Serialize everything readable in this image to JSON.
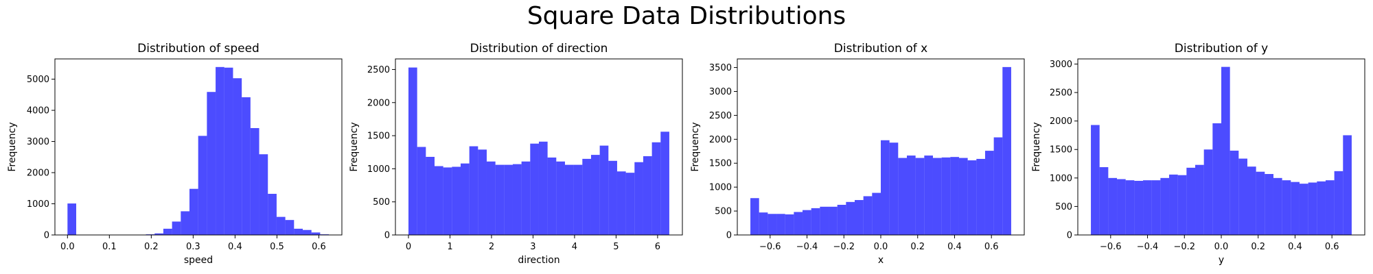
{
  "figure": {
    "title": "Square Data Distributions"
  },
  "colors": {
    "bar": "#0000ff",
    "bar_opacity": 0.7,
    "background": "#ffffff",
    "axes": "#000000"
  },
  "chart_data": [
    {
      "type": "bar",
      "title": "Distribution of speed",
      "xlabel": "speed",
      "ylabel": "Frequency",
      "xlim": [
        -0.03,
        0.655
      ],
      "ylim": [
        0,
        5650
      ],
      "xticks": [
        0.0,
        0.1,
        0.2,
        0.3,
        0.4,
        0.5,
        0.6
      ],
      "xtick_labels": [
        "0.0",
        "0.1",
        "0.2",
        "0.3",
        "0.4",
        "0.5",
        "0.6"
      ],
      "yticks": [
        0,
        1000,
        2000,
        3000,
        4000,
        5000
      ],
      "ytick_labels": [
        "0",
        "1000",
        "2000",
        "3000",
        "4000",
        "5000"
      ],
      "bin_start": 0.0,
      "bin_width": 0.0208,
      "values": [
        1010,
        0,
        0,
        0,
        0,
        0,
        0,
        0,
        10,
        20,
        50,
        200,
        430,
        760,
        1480,
        3180,
        4590,
        5390,
        5370,
        5030,
        4420,
        3430,
        2590,
        1320,
        580,
        480,
        200,
        160,
        80,
        20
      ]
    },
    {
      "type": "bar",
      "title": "Distribution of direction",
      "xlabel": "direction",
      "ylabel": "Frequency",
      "xlim": [
        -0.314,
        6.597
      ],
      "ylim": [
        0,
        2660
      ],
      "xticks": [
        0,
        1,
        2,
        3,
        4,
        5,
        6
      ],
      "xtick_labels": [
        "0",
        "1",
        "2",
        "3",
        "4",
        "5",
        "6"
      ],
      "yticks": [
        0,
        500,
        1000,
        1500,
        2000,
        2500
      ],
      "ytick_labels": [
        "0",
        "500",
        "1000",
        "1500",
        "2000",
        "2500"
      ],
      "bin_start": 0.0,
      "bin_width": 0.2094,
      "values": [
        2530,
        1330,
        1180,
        1040,
        1020,
        1030,
        1080,
        1340,
        1290,
        1110,
        1060,
        1060,
        1070,
        1110,
        1380,
        1410,
        1170,
        1110,
        1060,
        1060,
        1150,
        1210,
        1350,
        1120,
        960,
        940,
        1100,
        1190,
        1400,
        1560
      ]
    },
    {
      "type": "bar",
      "title": "Distribution of x",
      "xlabel": "x",
      "ylabel": "Frequency",
      "xlim": [
        -0.778,
        0.778
      ],
      "ylim": [
        0,
        3680
      ],
      "xticks": [
        -0.6,
        -0.4,
        -0.2,
        0.0,
        0.2,
        0.4,
        0.6
      ],
      "xtick_labels": [
        "−0.6",
        "−0.4",
        "−0.2",
        "0.0",
        "0.2",
        "0.4",
        "0.6"
      ],
      "yticks": [
        0,
        500,
        1000,
        1500,
        2000,
        2500,
        3000,
        3500
      ],
      "ytick_labels": [
        "0",
        "500",
        "1000",
        "1500",
        "2000",
        "2500",
        "3000",
        "3500"
      ],
      "bin_start": -0.7071,
      "bin_width": 0.04714,
      "values": [
        770,
        470,
        440,
        440,
        430,
        480,
        520,
        560,
        590,
        590,
        630,
        690,
        730,
        810,
        880,
        1980,
        1930,
        1610,
        1660,
        1610,
        1660,
        1610,
        1620,
        1630,
        1610,
        1560,
        1590,
        1760,
        2040,
        3510
      ]
    },
    {
      "type": "bar",
      "title": "Distribution of y",
      "xlabel": "y",
      "ylabel": "Frequency",
      "xlim": [
        -0.778,
        0.778
      ],
      "ylim": [
        0,
        3090
      ],
      "xticks": [
        -0.6,
        -0.4,
        -0.2,
        0.0,
        0.2,
        0.4,
        0.6
      ],
      "xtick_labels": [
        "−0.6",
        "−0.4",
        "−0.2",
        "0.0",
        "0.2",
        "0.4",
        "0.6"
      ],
      "yticks": [
        0,
        500,
        1000,
        1500,
        2000,
        2500,
        3000
      ],
      "ytick_labels": [
        "0",
        "500",
        "1000",
        "1500",
        "2000",
        "2500",
        "3000"
      ],
      "bin_start": -0.7071,
      "bin_width": 0.04714,
      "values": [
        1930,
        1190,
        1000,
        980,
        960,
        950,
        960,
        960,
        1000,
        1060,
        1050,
        1180,
        1230,
        1500,
        1960,
        2950,
        1480,
        1340,
        1200,
        1110,
        1070,
        1000,
        960,
        930,
        900,
        920,
        940,
        960,
        1120,
        1750
      ]
    }
  ]
}
